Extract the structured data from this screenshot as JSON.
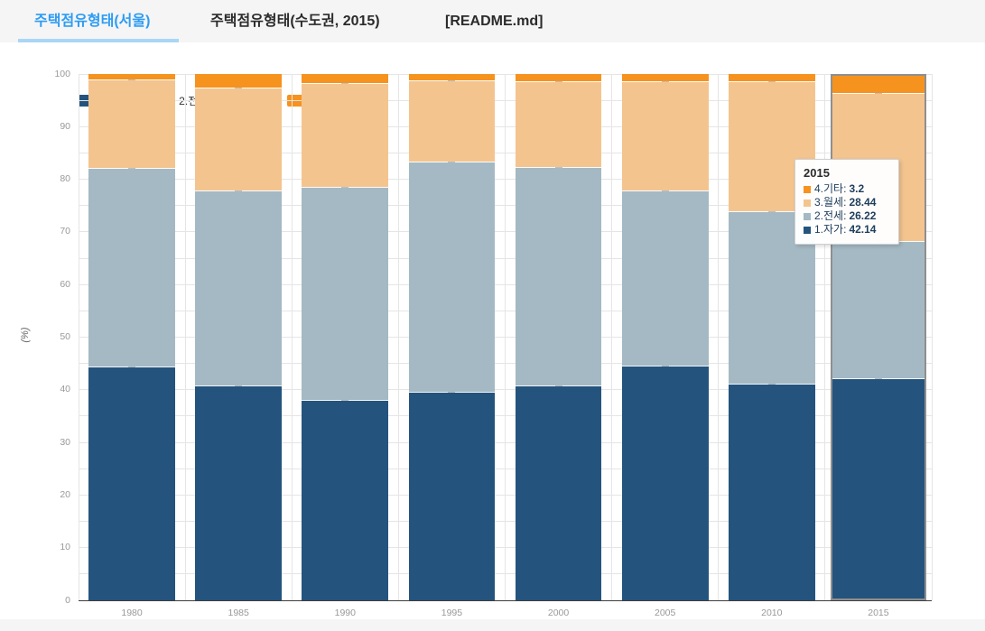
{
  "accent_color": "#2d9cf4",
  "accent_underline_color": "#a9d6f6",
  "tabs": [
    {
      "label": "주택점유형태(서울)",
      "active": true
    },
    {
      "label": "주택점유형태(수도권, 2015)",
      "active": false
    },
    {
      "label": "[README.md]",
      "active": false
    }
  ],
  "legend": [
    {
      "label": "1.자가",
      "color": "#24547e"
    },
    {
      "label": "2.전세",
      "color": "#a4b9c3"
    },
    {
      "label": "3.월세",
      "color": "#f4c48f"
    },
    {
      "label": "4.기타",
      "color": "#f6921e"
    }
  ],
  "chart_data": {
    "type": "bar",
    "subtype": "stacked-100-percent",
    "categories": [
      "1980",
      "1985",
      "1990",
      "1995",
      "2000",
      "2005",
      "2010",
      "2015"
    ],
    "series": [
      {
        "name": "1.자가",
        "color": "#24547e",
        "values": [
          44.5,
          40.9,
          38.0,
          39.7,
          40.9,
          44.6,
          41.1,
          42.14
        ]
      },
      {
        "name": "2.전세",
        "color": "#a4b9c3",
        "values": [
          37.6,
          36.9,
          40.5,
          43.6,
          41.4,
          33.3,
          32.8,
          26.22
        ]
      },
      {
        "name": "3.월세",
        "color": "#f4c48f",
        "values": [
          16.8,
          19.7,
          19.7,
          15.5,
          16.4,
          20.8,
          24.8,
          28.44
        ]
      },
      {
        "name": "4.기타",
        "color": "#f6921e",
        "values": [
          1.1,
          2.5,
          1.8,
          1.2,
          1.3,
          1.3,
          1.3,
          3.2
        ]
      }
    ],
    "xlabel": "",
    "ylabel": "(%)",
    "ylim": [
      0,
      100
    ],
    "yticks": [
      0,
      10,
      20,
      30,
      40,
      50,
      60,
      70,
      80,
      90,
      100
    ],
    "grid": "horizontal every 5, vertical at category bounds",
    "legend_position": "top-left",
    "highlighted_category": "2015"
  },
  "tooltip": {
    "title": "2015",
    "rows": [
      {
        "label": "4.기타",
        "value": "3.2",
        "color": "#f6921e"
      },
      {
        "label": "3.월세",
        "value": "28.44",
        "color": "#f4c48f"
      },
      {
        "label": "2.전세",
        "value": "26.22",
        "color": "#a4b9c3"
      },
      {
        "label": "1.자가",
        "value": "42.14",
        "color": "#24547e"
      }
    ]
  }
}
